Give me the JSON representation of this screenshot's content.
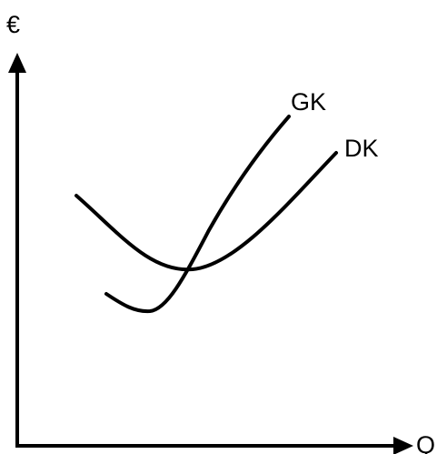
{
  "axes": {
    "y_label": "€",
    "x_label": "Q"
  },
  "curves": {
    "gk_label": "GK",
    "dk_label": "DK"
  },
  "colors": {
    "ink": "#000000",
    "background": "#ffffff"
  }
}
